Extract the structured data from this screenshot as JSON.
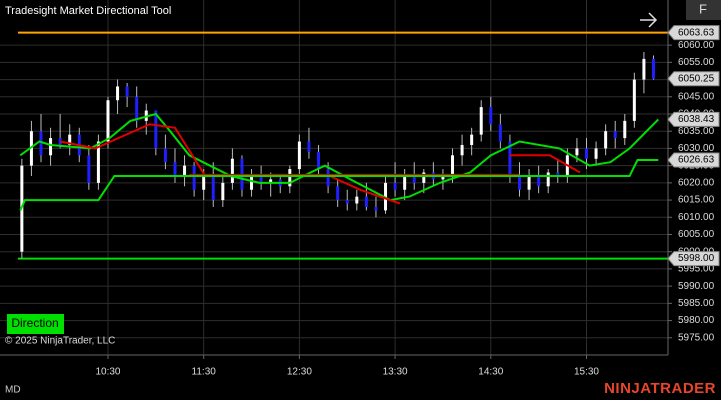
{
  "header": {
    "title": "Tradesight Market Directional Tool",
    "button": "F"
  },
  "chart_data": {
    "type": "candlestick",
    "x": [
      576,
      582,
      588,
      594,
      600,
      606,
      612,
      618,
      624,
      630,
      636,
      642,
      648,
      654,
      660,
      666,
      672,
      678,
      684,
      690,
      696,
      702,
      708,
      714,
      720,
      726,
      732,
      738,
      744,
      750,
      756,
      762,
      768,
      774,
      780,
      786,
      792,
      798,
      804,
      810,
      816,
      822,
      828,
      834,
      840,
      846,
      852,
      858,
      864,
      870,
      876,
      882,
      888,
      894,
      900,
      906,
      912,
      918,
      924,
      930,
      936,
      942,
      948,
      954,
      960,
      966,
      972
    ],
    "open": [
      6000,
      6025,
      6035,
      6028,
      6033,
      6031,
      6034,
      6028,
      6020,
      6032,
      6044,
      6048,
      6045,
      6038,
      6041,
      6030,
      6026,
      6022,
      6025,
      6018,
      6022,
      6015,
      6020,
      6027,
      6018,
      6022,
      6020,
      6021,
      6019,
      6024,
      6032,
      6029,
      6024,
      6019,
      6015,
      6014,
      6016,
      6013,
      6012,
      6020,
      6018,
      6022,
      6020,
      6023,
      6021,
      6022,
      6028,
      6031,
      6034,
      6042,
      6037,
      6032,
      6022,
      6018,
      6022,
      6019,
      6023,
      6022,
      6028,
      6030,
      6027,
      6030,
      6035,
      6033,
      6038,
      6050,
      6056
    ],
    "high": [
      6027,
      6038,
      6040,
      6036,
      6040,
      6037,
      6036,
      6031,
      6034,
      6045,
      6050,
      6049,
      6048,
      6043,
      6041,
      6034,
      6030,
      6028,
      6026,
      6024,
      6026,
      6022,
      6030,
      6028,
      6024,
      6025,
      6023,
      6022,
      6025,
      6034,
      6036,
      6031,
      6026,
      6021,
      6018,
      6018,
      6020,
      6016,
      6022,
      6026,
      6024,
      6026,
      6024,
      6026,
      6024,
      6030,
      6034,
      6036,
      6044,
      6045,
      6040,
      6034,
      6026,
      6024,
      6025,
      6024,
      6027,
      6030,
      6033,
      6033,
      6032,
      6037,
      6038,
      6040,
      6052,
      6058,
      6057
    ],
    "low": [
      5998,
      6022,
      6026,
      6025,
      6030,
      6028,
      6026,
      6018,
      6018,
      6030,
      6040,
      6042,
      6036,
      6034,
      6028,
      6024,
      6020,
      6019,
      6016,
      6015,
      6013,
      6013,
      6018,
      6016,
      6016,
      6018,
      6016,
      6017,
      6017,
      6022,
      6027,
      6022,
      6017,
      6013,
      6012,
      6012,
      6012,
      6010,
      6011,
      6016,
      6015,
      6018,
      6017,
      6019,
      6018,
      6020,
      6025,
      6028,
      6032,
      6035,
      6030,
      6020,
      6016,
      6015,
      6017,
      6017,
      6020,
      6020,
      6026,
      6024,
      6025,
      6028,
      6030,
      6031,
      6036,
      6046,
      6050
    ],
    "close": [
      6025,
      6035,
      6028,
      6033,
      6031,
      6034,
      6028,
      6020,
      6032,
      6044,
      6048,
      6045,
      6038,
      6041,
      6030,
      6026,
      6022,
      6025,
      6018,
      6022,
      6015,
      6020,
      6027,
      6018,
      6022,
      6020,
      6021,
      6019,
      6024,
      6032,
      6029,
      6024,
      6019,
      6015,
      6014,
      6016,
      6013,
      6012,
      6020,
      6018,
      6022,
      6020,
      6023,
      6021,
      6022,
      6028,
      6031,
      6034,
      6042,
      6037,
      6032,
      6022,
      6018,
      6022,
      6019,
      6023,
      6022,
      6028,
      6030,
      6027,
      6030,
      6035,
      6033,
      6038,
      6050,
      6056,
      6050.25
    ],
    "up_color": "#ffffff",
    "down_color": "#1f1fff",
    "wick_color": "#bbbbbb",
    "lines": [
      {
        "color": "#00e000",
        "x": [
          575,
          587,
          594,
          619,
          631,
          644,
          660,
          669,
          681,
          707,
          725,
          744,
          757,
          766,
          782,
          807,
          819,
          838,
          857,
          870,
          888,
          913,
          932,
          945,
          957,
          975
        ],
        "values": [
          6028,
          6032,
          6031,
          6030,
          6033,
          6038,
          6040,
          6035,
          6028,
          6022,
          6020,
          6020,
          6023,
          6025,
          6021,
          6015,
          6016,
          6020,
          6023,
          6028,
          6032,
          6030,
          6025,
          6026,
          6030,
          6038.43
        ]
      },
      {
        "color": "#e00000",
        "x": [
          600,
          622,
          656,
          672,
          691,
          707,
          738,
          769,
          788,
          813,
          844,
          882,
          907,
          926
        ],
        "values": [
          6032,
          6030,
          6037,
          6036,
          6022,
          6022,
          null,
          6022,
          6018,
          6014,
          null,
          6028,
          6028,
          6023
        ]
      },
      {
        "color": "#e00000",
        "x": [
          681,
          888
        ],
        "values": [
          6022.3,
          6022.3
        ]
      },
      {
        "color": "#00e000",
        "x": [
          575,
          578,
          624,
          634,
          957,
          962,
          975
        ],
        "values": [
          6012,
          6015,
          6015,
          6022,
          6022,
          6026.63,
          6026.63
        ]
      }
    ],
    "levels": [
      {
        "value": 6063.63,
        "color": "#ffa500"
      },
      {
        "value": 5998,
        "color": "#00e000"
      }
    ],
    "price_markers": [
      6063.63,
      6050.25,
      6038.43,
      6026.63,
      {
        "value": 5998,
        "label": "5998.00"
      }
    ],
    "xlim": [
      562.3,
      981.1
    ],
    "xticks": [
      {
        "value": 630,
        "label": "10:30"
      },
      {
        "value": 690,
        "label": "11:30"
      },
      {
        "value": 750,
        "label": "12:30"
      },
      {
        "value": 810,
        "label": "13:30"
      },
      {
        "value": 870,
        "label": "14:30"
      },
      {
        "value": 930,
        "label": "15:30"
      }
    ],
    "ylim": [
      5970,
      6067.3
    ],
    "yticks": [
      {
        "value": 5975,
        "label": "5975.00"
      },
      {
        "value": 5980,
        "label": "5980.00"
      },
      {
        "value": 5985,
        "label": "5985.00"
      },
      {
        "value": 5990,
        "label": "5990.00"
      },
      {
        "value": 5995,
        "label": "5995.00"
      },
      {
        "value": 6000,
        "label": "6000.00"
      },
      {
        "value": 6005,
        "label": "6005.00"
      },
      {
        "value": 6010,
        "label": "6010.00"
      },
      {
        "value": 6015,
        "label": "6015.00"
      },
      {
        "value": 6020,
        "label": "6020.00"
      },
      {
        "value": 6025,
        "label": "6025.00"
      },
      {
        "value": 6030,
        "label": "6030.00"
      },
      {
        "value": 6035,
        "label": "6035.00"
      },
      {
        "value": 6040,
        "label": "6040.00"
      },
      {
        "value": 6045,
        "label": "6045.00"
      },
      {
        "value": 6050,
        "label": "6050.00"
      },
      {
        "value": 6055,
        "label": "6055.00"
      },
      {
        "value": 6060,
        "label": "6060.00"
      }
    ],
    "grid": true
  },
  "indicator_button": "Direction",
  "copyright": "© 2025 NinjaTrader, LLC",
  "footer": {
    "left": "MD",
    "brand": "NINJATRADER"
  }
}
